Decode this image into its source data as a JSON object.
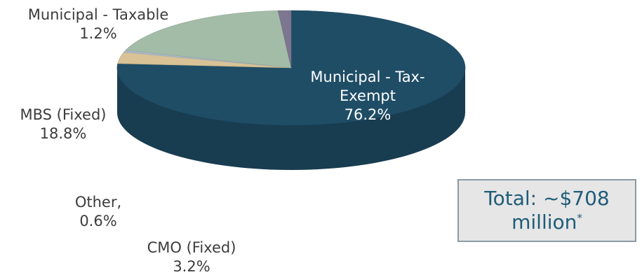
{
  "chart_data": {
    "type": "pie",
    "slices": [
      {
        "label_lines": [
          "Municipal - Tax-",
          "Exempt"
        ],
        "value_label": "76.2%",
        "value": 76.2,
        "color": "#1f4d66"
      },
      {
        "label_lines": [
          "CMO (Fixed)"
        ],
        "value_label": "3.2%",
        "value": 3.2,
        "color": "#d9c295"
      },
      {
        "label_lines": [
          "Other,"
        ],
        "value_label": "0.6%",
        "value": 0.6,
        "color": "#aab8c8"
      },
      {
        "label_lines": [
          "MBS (Fixed)"
        ],
        "value_label": "18.8%",
        "value": 18.8,
        "color": "#a3bca8"
      },
      {
        "label_lines": [
          "Municipal - Taxable"
        ],
        "value_label": "1.2%",
        "value": 1.2,
        "color": "#7d7690"
      }
    ]
  },
  "total_box": {
    "line1": "Total: ~$708",
    "line2": "million",
    "footnote": "*"
  }
}
